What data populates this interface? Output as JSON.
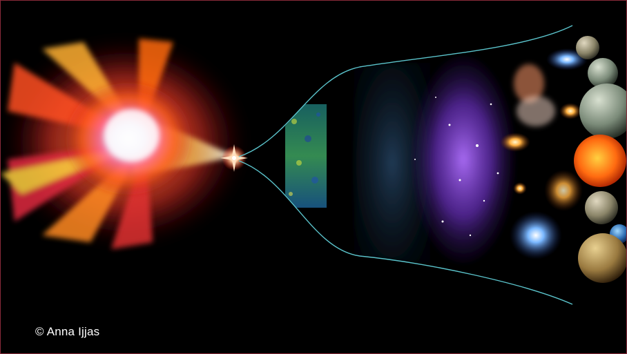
{
  "credit": "© Anna Ijjas",
  "colors": {
    "background": "#000000",
    "frame_border": "#8a2b3a",
    "flare_core": "#f2f4ff",
    "flare_orange": "#ff7a1a",
    "flare_red": "#e3243b",
    "flare_yellow": "#ffd23a",
    "funnel_line": "#5bc4cc",
    "cmb_band": "#2a8a6a",
    "nebula_purple": "#8a3cc8",
    "sun_orange": "#ff6a10"
  },
  "icons": {
    "big_bang_flare": "radiating-burst",
    "bounce_point": "star-flash",
    "cosmic_background": "speckled-band",
    "galaxies": "spiral-galaxy",
    "planets": "planet-spheres",
    "sun": "fiery-sphere",
    "earth": "blue-planet"
  }
}
